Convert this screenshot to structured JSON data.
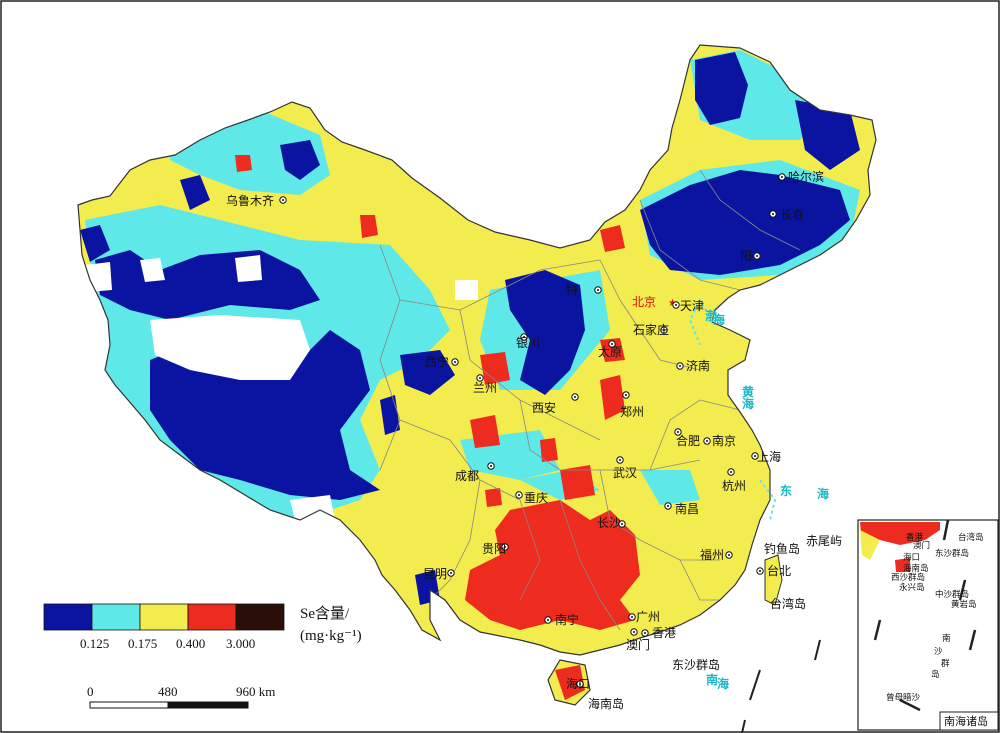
{
  "legend": {
    "title": "Se含量/",
    "unit": "(mg·kg⁻¹)",
    "colors": [
      "#0a14a0",
      "#5fe8e8",
      "#f2ec4e",
      "#ee2b1f",
      "#2a0e08"
    ],
    "ticks": [
      "0.125",
      "0.175",
      "0.400",
      "3.000"
    ]
  },
  "scale_bar": {
    "labels": [
      "0",
      "480",
      "960 km"
    ]
  },
  "cities": [
    {
      "name": "乌鲁木齐",
      "capital": false
    },
    {
      "name": "哈尔滨",
      "capital": false
    },
    {
      "name": "长春",
      "capital": false
    },
    {
      "name": "阳",
      "capital": false
    },
    {
      "name": "特",
      "capital": false
    },
    {
      "name": "北京",
      "capital": true
    },
    {
      "name": "天津",
      "capital": false
    },
    {
      "name": "石家庄",
      "capital": false
    },
    {
      "name": "银川",
      "capital": false
    },
    {
      "name": "太原",
      "capital": false
    },
    {
      "name": "西宁",
      "capital": false
    },
    {
      "name": "兰州",
      "capital": false
    },
    {
      "name": "济南",
      "capital": false
    },
    {
      "name": "西安",
      "capital": false
    },
    {
      "name": "郑州",
      "capital": false
    },
    {
      "name": "合肥",
      "capital": false
    },
    {
      "name": "南京",
      "capital": false
    },
    {
      "name": "上海",
      "capital": false
    },
    {
      "name": "成都",
      "capital": false
    },
    {
      "name": "武汉",
      "capital": false
    },
    {
      "name": "杭州",
      "capital": false
    },
    {
      "name": "重庆",
      "capital": false
    },
    {
      "name": "南昌",
      "capital": false
    },
    {
      "name": "长沙",
      "capital": false
    },
    {
      "name": "贵阳",
      "capital": false
    },
    {
      "name": "福州",
      "capital": false
    },
    {
      "name": "昆明",
      "capital": false
    },
    {
      "name": "台北",
      "capital": false
    },
    {
      "name": "南宁",
      "capital": false
    },
    {
      "name": "广州",
      "capital": false
    },
    {
      "name": "香港",
      "capital": false
    },
    {
      "name": "澳门",
      "capital": false
    },
    {
      "name": "海口",
      "capital": false
    }
  ],
  "seas": [
    "黄",
    "海",
    "渤",
    "海",
    "东",
    "海",
    "南",
    "海"
  ],
  "islands": [
    "钓鱼岛",
    "赤尾屿",
    "台湾岛",
    "东沙群岛",
    "海南岛"
  ],
  "inset": {
    "caption": "南海诸岛",
    "labels": [
      "香港",
      "澳门",
      "台湾岛",
      "海口",
      "东沙群岛",
      "海南岛",
      "西沙群岛",
      "永兴岛",
      "中沙群岛",
      "黄岩岛",
      "南",
      "沙",
      "群",
      "岛",
      "曾母暗沙"
    ]
  }
}
